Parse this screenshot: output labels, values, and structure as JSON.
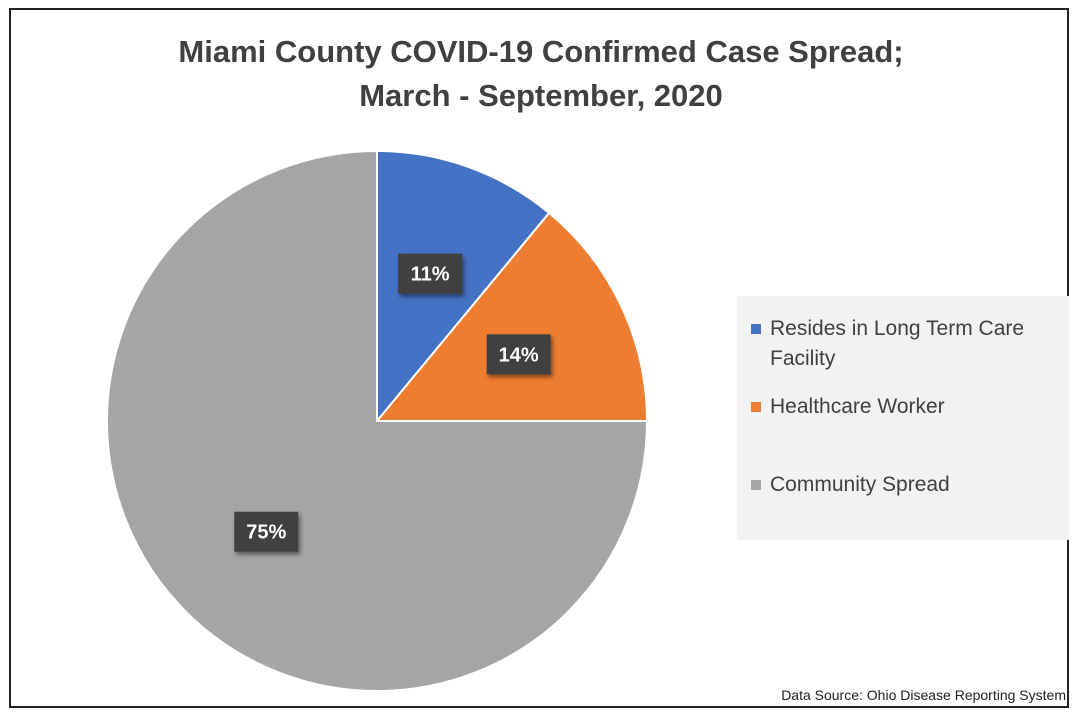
{
  "chart_data": {
    "type": "pie",
    "title": [
      "Miami County COVID-19 Confirmed Case Spread;",
      "March - September, 2020"
    ],
    "slices": [
      {
        "name": "Resides in Long Term Care Facility",
        "value": 11,
        "label": "11%",
        "color": "#4472c4"
      },
      {
        "name": "Healthcare Worker",
        "value": 14,
        "label": "14%",
        "color": "#ed7d31"
      },
      {
        "name": "Community Spread",
        "value": 75,
        "label": "75%",
        "color": "#a5a5a5"
      }
    ],
    "legend_position": "right",
    "source": "Data Source: Ohio Disease Reporting System"
  }
}
